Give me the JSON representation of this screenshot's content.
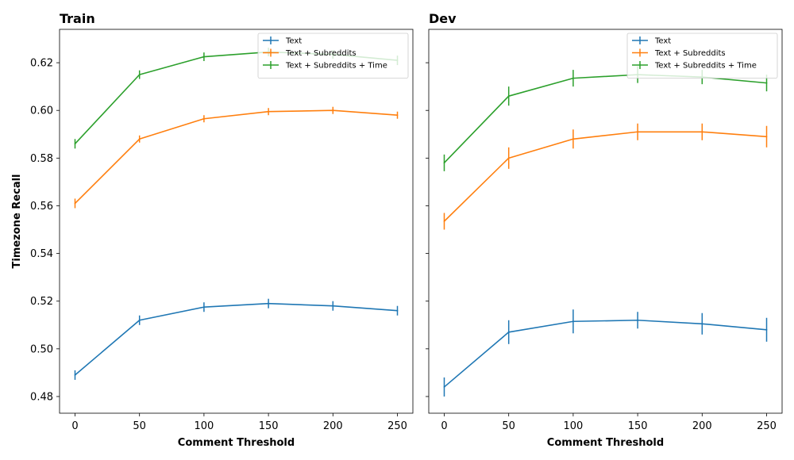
{
  "chart_data": {
    "type": "line",
    "ylabel": "Timezone Recall",
    "xticks": [
      0,
      50,
      100,
      150,
      200,
      250
    ],
    "yticks": [
      0.48,
      0.5,
      0.52,
      0.54,
      0.56,
      0.58,
      0.6,
      0.62
    ],
    "xlim": [
      -12,
      262
    ],
    "ylim": [
      0.473,
      0.634
    ],
    "legend_position": "top-right",
    "colors": {
      "Text": "#1f77b4",
      "Text + Subreddits": "#ff7f0e",
      "Text + Subreddits + Time": "#2ca02c"
    },
    "panels": [
      {
        "title": "Train",
        "xlabel": "Comment Threshold",
        "x": [
          0,
          50,
          100,
          150,
          200,
          250
        ],
        "series": [
          {
            "name": "Text",
            "values": [
              0.489,
              0.512,
              0.5175,
              0.519,
              0.518,
              0.516
            ],
            "err": [
              0.002,
              0.002,
              0.002,
              0.002,
              0.002,
              0.002
            ]
          },
          {
            "name": "Text + Subreddits",
            "values": [
              0.561,
              0.588,
              0.5965,
              0.5995,
              0.6,
              0.598
            ],
            "err": [
              0.002,
              0.0015,
              0.0015,
              0.0015,
              0.0015,
              0.0015
            ]
          },
          {
            "name": "Text + Subreddits + Time",
            "values": [
              0.586,
              0.615,
              0.6225,
              0.6245,
              0.6235,
              0.621
            ],
            "err": [
              0.002,
              0.0018,
              0.0018,
              0.0018,
              0.0018,
              0.002
            ]
          }
        ]
      },
      {
        "title": "Dev",
        "xlabel": "Comment Threshold",
        "x": [
          0,
          50,
          100,
          150,
          200,
          250
        ],
        "series": [
          {
            "name": "Text",
            "values": [
              0.484,
              0.507,
              0.5115,
              0.512,
              0.5105,
              0.508
            ],
            "err": [
              0.004,
              0.005,
              0.005,
              0.0035,
              0.0045,
              0.005
            ]
          },
          {
            "name": "Text + Subreddits",
            "values": [
              0.5535,
              0.58,
              0.588,
              0.591,
              0.591,
              0.589
            ],
            "err": [
              0.0035,
              0.0045,
              0.004,
              0.0035,
              0.0035,
              0.0045
            ]
          },
          {
            "name": "Text + Subreddits + Time",
            "values": [
              0.578,
              0.606,
              0.6135,
              0.615,
              0.614,
              0.6115
            ],
            "err": [
              0.0035,
              0.004,
              0.0035,
              0.0035,
              0.003,
              0.0035
            ]
          }
        ]
      }
    ]
  }
}
